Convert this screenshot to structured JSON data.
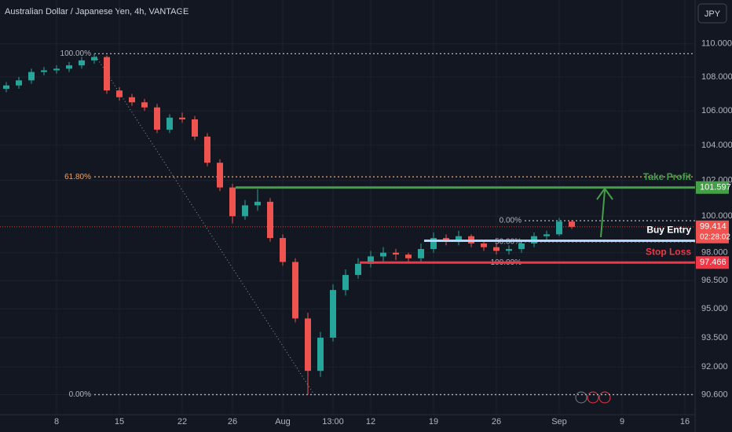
{
  "chart_data": {
    "type": "candlestick",
    "title": "Australian Dollar / Japanese Yen, 4h, VANTAGE",
    "currency": "JPY",
    "log": true,
    "grid": true,
    "up_color": "#26a69a",
    "down_color": "#ef5350",
    "categories": [
      null,
      null,
      null,
      null,
      "8",
      null,
      null,
      null,
      null,
      "15",
      null,
      null,
      null,
      null,
      "22",
      null,
      null,
      null,
      "26",
      null,
      null,
      null,
      "Aug",
      null,
      null,
      null,
      "13:00",
      null,
      null,
      "12",
      null,
      null,
      null,
      null,
      "19",
      null,
      null,
      null,
      null,
      "26",
      null,
      null,
      null,
      null,
      "Sep",
      null,
      null,
      null,
      null,
      "9",
      null,
      null,
      null,
      null,
      "16",
      null
    ],
    "open": [
      107.3,
      107.5,
      107.8,
      108.3,
      108.4,
      108.5,
      108.7,
      109.0,
      109.2,
      107.2,
      106.8,
      106.5,
      106.2,
      104.9,
      105.6,
      105.5,
      104.5,
      103.0,
      101.6,
      100.0,
      100.6,
      100.8,
      98.8,
      97.5,
      94.5,
      91.8,
      93.5,
      96.0,
      96.8,
      97.4,
      97.8,
      98.0,
      97.9,
      97.7,
      98.2,
      98.8,
      98.6,
      98.9,
      98.5,
      98.3,
      98.1,
      98.2,
      98.5,
      98.9,
      99.0,
      99.7,
      null,
      null,
      null,
      null,
      null,
      null,
      null,
      null,
      null,
      null
    ],
    "high": [
      107.7,
      108.0,
      108.5,
      108.6,
      108.7,
      108.9,
      109.2,
      109.4,
      109.3,
      107.4,
      107.0,
      106.7,
      106.4,
      105.8,
      105.9,
      105.7,
      104.7,
      103.2,
      101.8,
      100.9,
      101.5,
      101.0,
      99.0,
      97.7,
      94.8,
      93.8,
      96.3,
      97.1,
      97.7,
      98.1,
      98.3,
      98.2,
      98.0,
      98.5,
      99.1,
      99.0,
      99.2,
      99.0,
      98.7,
      98.5,
      98.4,
      98.7,
      99.1,
      99.2,
      99.9,
      99.8,
      null,
      null,
      null,
      null,
      null,
      null,
      null,
      null,
      null,
      null
    ],
    "low": [
      107.1,
      107.3,
      107.6,
      108.1,
      108.2,
      108.3,
      108.5,
      108.8,
      107.0,
      106.6,
      106.3,
      106.0,
      104.7,
      104.7,
      105.3,
      104.3,
      102.8,
      101.4,
      99.6,
      99.8,
      100.3,
      98.6,
      97.3,
      94.3,
      90.6,
      91.5,
      93.3,
      95.7,
      96.6,
      97.2,
      97.5,
      97.6,
      97.4,
      97.5,
      98.0,
      98.4,
      98.4,
      98.3,
      98.1,
      97.9,
      97.9,
      98.0,
      98.3,
      98.7,
      98.9,
      99.3,
      null,
      null,
      null,
      null,
      null,
      null,
      null,
      null,
      null,
      null
    ],
    "close": [
      107.5,
      107.8,
      108.3,
      108.4,
      108.5,
      108.7,
      109.0,
      109.2,
      107.2,
      106.8,
      106.5,
      106.2,
      104.9,
      105.6,
      105.5,
      104.5,
      103.0,
      101.6,
      100.0,
      100.6,
      100.8,
      98.8,
      97.5,
      94.5,
      91.8,
      93.5,
      96.0,
      96.8,
      97.4,
      97.8,
      98.0,
      97.9,
      97.7,
      98.2,
      98.8,
      98.6,
      98.9,
      98.5,
      98.3,
      98.1,
      98.2,
      98.5,
      98.9,
      99.0,
      99.7,
      99.414,
      null,
      null,
      null,
      null,
      null,
      null,
      null,
      null,
      null,
      null
    ],
    "ylim": [
      89.6,
      112.7
    ],
    "yticks": [
      {
        "value": 110,
        "label": "110.000"
      },
      {
        "value": 108,
        "label": "108.000"
      },
      {
        "value": 106,
        "label": "106.000"
      },
      {
        "value": 104,
        "label": "104.000"
      },
      {
        "value": 102,
        "label": "102.000"
      },
      {
        "value": 100,
        "label": "100.000"
      },
      {
        "value": 98,
        "label": "98.000"
      },
      {
        "value": 96.5,
        "label": "96.500"
      },
      {
        "value": 95,
        "label": "95.000"
      },
      {
        "value": 93.5,
        "label": "93.500"
      },
      {
        "value": 92,
        "label": "92.000"
      },
      {
        "value": 90.6,
        "label": "90.600"
      }
    ],
    "fib_retracement_1": [
      {
        "label": "100.00%",
        "value": 109.4,
        "color": "#b2b5be"
      },
      {
        "label": "61.80%",
        "value": 102.2,
        "color": "#f7a35c"
      },
      {
        "label": "0.00%",
        "value": 90.6,
        "color": "#b2b5be"
      }
    ],
    "fib_retracement_2": [
      {
        "label": "0.00%",
        "value": 99.75,
        "color": "#b2b5be"
      },
      {
        "label": "50.00%",
        "value": 98.6,
        "color": "#b2b5be"
      },
      {
        "label": "100.00%",
        "value": 97.466,
        "color": "#b2b5be"
      }
    ],
    "levels": [
      {
        "label": "Take Profit",
        "value": 101.597,
        "color": "#43a047"
      },
      {
        "label": "Buy Entry",
        "value": 98.65,
        "color": "#b3d4fc"
      },
      {
        "label": "Stop Loss",
        "value": 97.466,
        "color": "#f23645"
      }
    ],
    "last_price": 99.414,
    "countdown": "02:28:02"
  }
}
